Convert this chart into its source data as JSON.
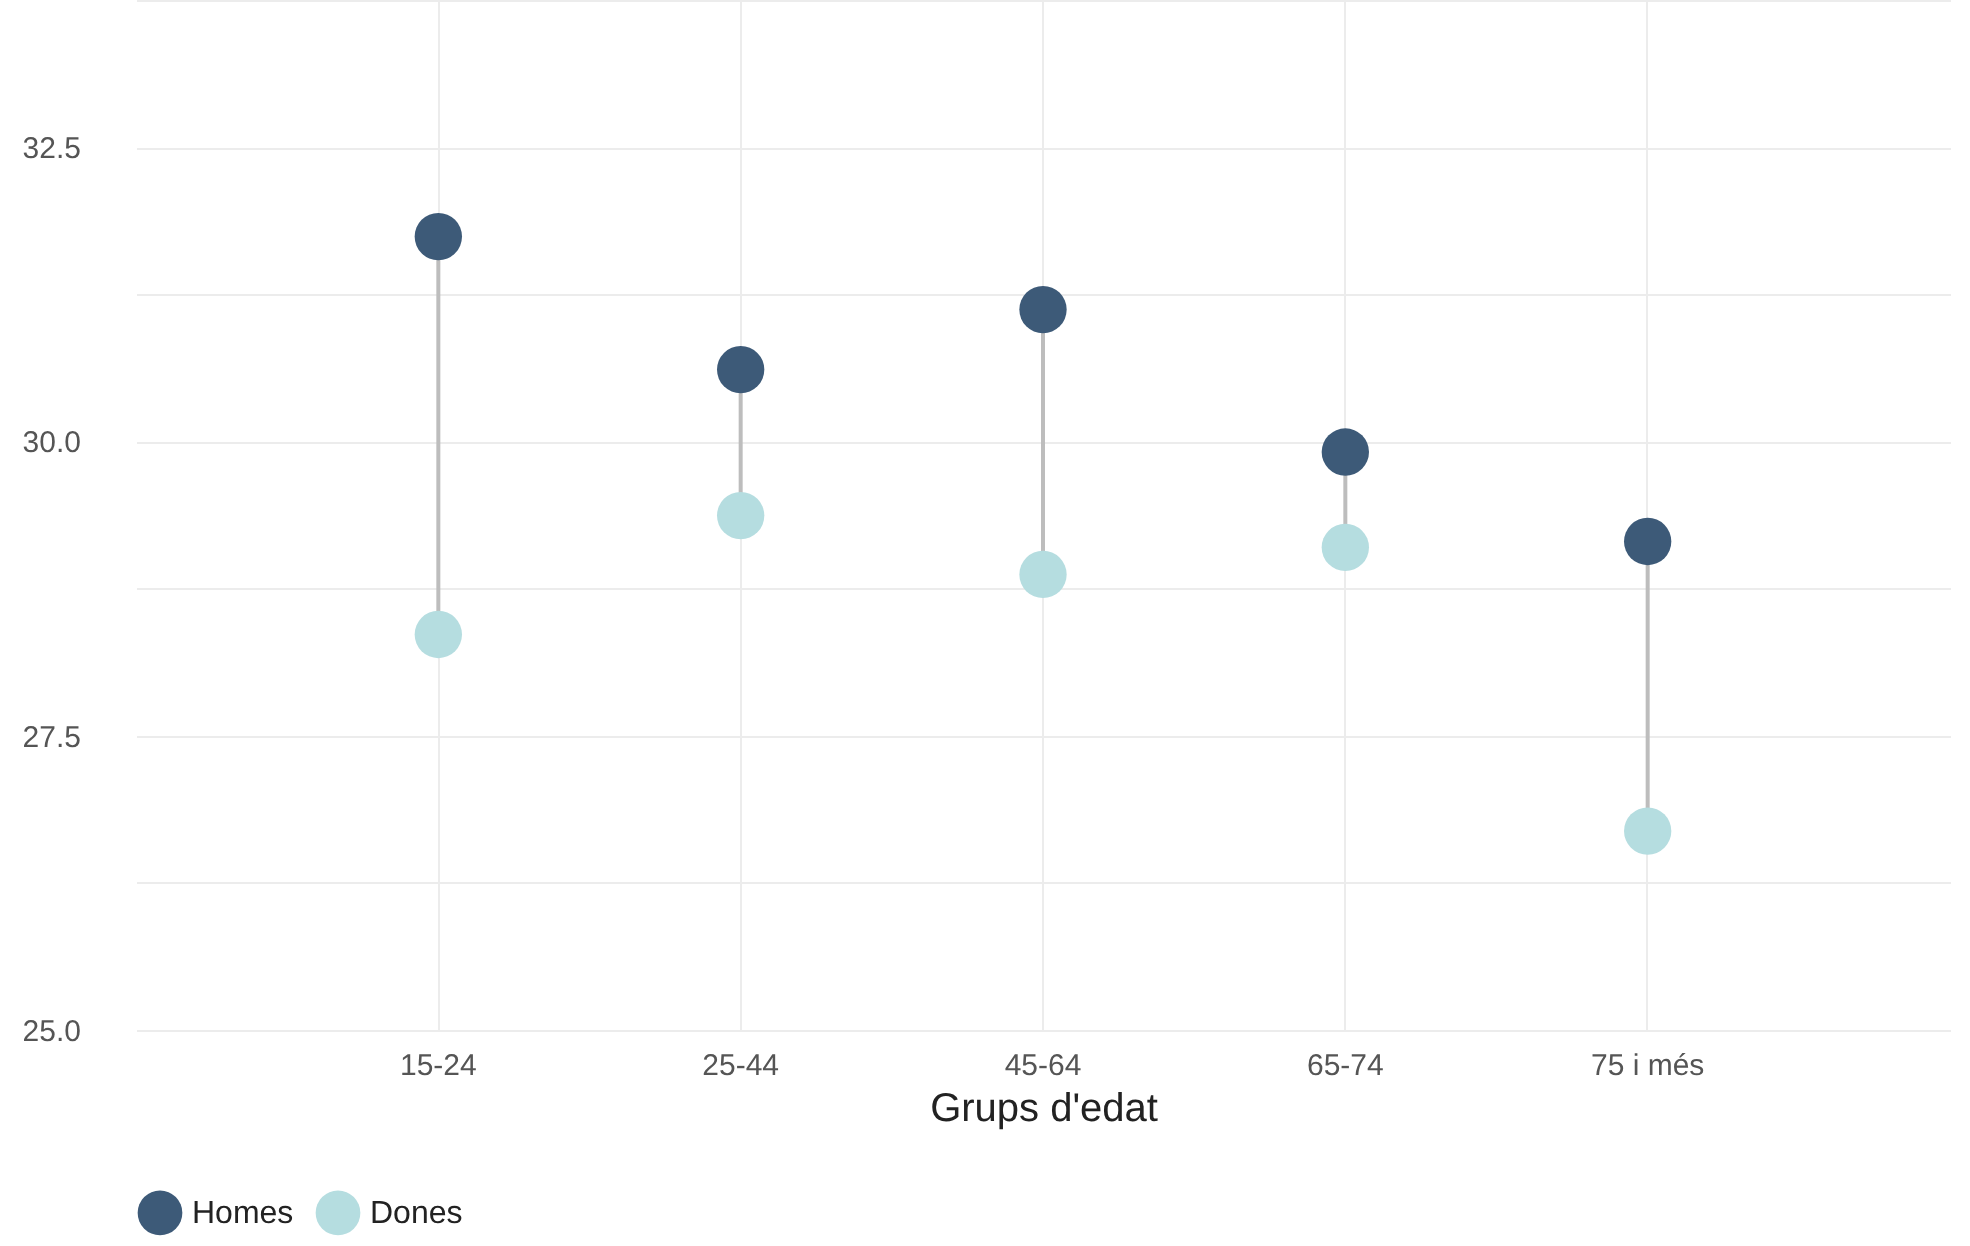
{
  "chart_data": {
    "type": "scatter",
    "xlabel": "Grups d'edat",
    "categories": [
      "15-24",
      "25-44",
      "45-64",
      "65-74",
      "75 i més"
    ],
    "series": [
      {
        "name": "Homes",
        "color": "#3d5a78",
        "values": [
          31.74,
          30.61,
          31.12,
          29.91,
          29.15
        ]
      },
      {
        "name": "Dones",
        "color": "#b5dde0",
        "values": [
          28.36,
          29.37,
          28.87,
          29.1,
          26.69
        ]
      }
    ],
    "ylim": [
      25,
      33.75
    ],
    "yticks": [
      {
        "value": 25,
        "label": "25.0"
      },
      {
        "value": 26.25,
        "label": null
      },
      {
        "value": 27.5,
        "label": "27.5"
      },
      {
        "value": 28.75,
        "label": null
      },
      {
        "value": 30,
        "label": "30.0"
      },
      {
        "value": 31.25,
        "label": null
      },
      {
        "value": 32.5,
        "label": "32.5"
      },
      {
        "value": 33.75,
        "label": null
      }
    ],
    "grid": true,
    "legend": "bottom",
    "marker": "circle"
  }
}
